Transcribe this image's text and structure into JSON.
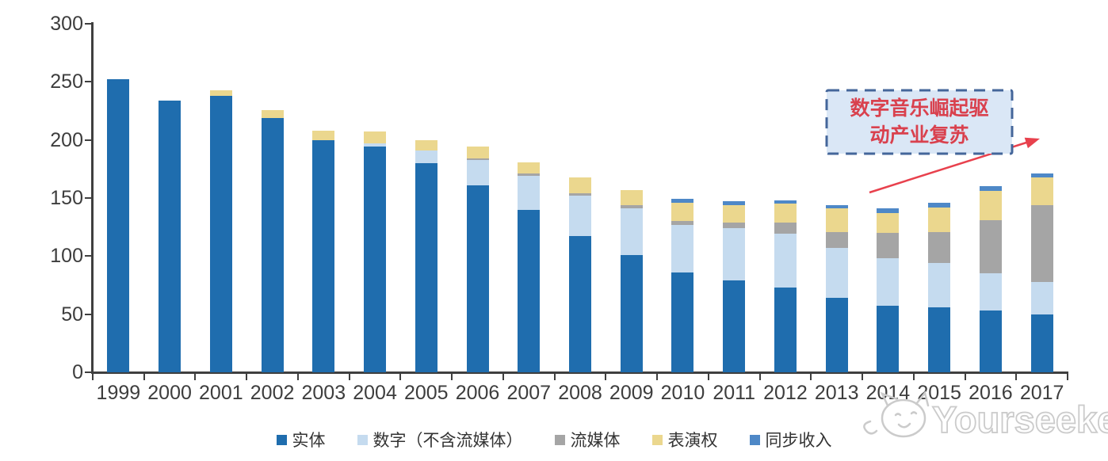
{
  "chart_data": {
    "type": "bar",
    "stacked": true,
    "title": "",
    "categories": [
      "1999",
      "2000",
      "2001",
      "2002",
      "2003",
      "2004",
      "2005",
      "2006",
      "2007",
      "2008",
      "2009",
      "2010",
      "2011",
      "2012",
      "2013",
      "2014",
      "2015",
      "2016",
      "2017"
    ],
    "series": [
      {
        "name": "实体",
        "color": "#1F6DAE",
        "values": [
          252,
          234,
          238,
          219,
          200,
          194,
          180,
          161,
          140,
          117,
          101,
          86,
          79,
          73,
          64,
          57,
          56,
          53,
          50
        ]
      },
      {
        "name": "数字（不含流媒体）",
        "color": "#C5DBEF",
        "values": [
          0,
          0,
          0,
          0,
          0,
          3,
          11,
          22,
          29,
          35,
          40,
          41,
          45,
          46,
          43,
          41,
          38,
          32,
          28
        ]
      },
      {
        "name": "流媒体",
        "color": "#A5A5A5",
        "values": [
          0,
          0,
          0,
          0,
          0,
          0,
          0,
          1,
          2,
          2,
          3,
          3,
          5,
          10,
          14,
          22,
          27,
          46,
          66
        ]
      },
      {
        "name": "表演权",
        "color": "#EBD78E",
        "values": [
          0,
          0,
          5,
          7,
          8,
          10,
          9,
          10,
          10,
          14,
          13,
          16,
          15,
          16,
          20,
          17,
          21,
          25,
          24
        ]
      },
      {
        "name": "同步收入",
        "color": "#4E88C7",
        "values": [
          0,
          0,
          0,
          0,
          0,
          0,
          0,
          0,
          0,
          0,
          0,
          3,
          3,
          3,
          3,
          4,
          4,
          4,
          3
        ]
      }
    ],
    "ylim": [
      0,
      300
    ],
    "yticks": [
      0,
      50,
      100,
      150,
      200,
      250,
      300
    ],
    "grid": false,
    "legend_position": "bottom",
    "axis_color": "#3F3F3F",
    "label_color": "#3D3D3D"
  },
  "annotation": {
    "line1": "数字音乐崛起驱",
    "line2": "动产业复苏",
    "text_color": "#D9414E",
    "fill_color": "#DAE7F6",
    "border_color": "#44669A",
    "arrow_color": "#E8414D"
  },
  "watermark": {
    "text": "Yourseeker",
    "color": "#CBCBCB"
  }
}
